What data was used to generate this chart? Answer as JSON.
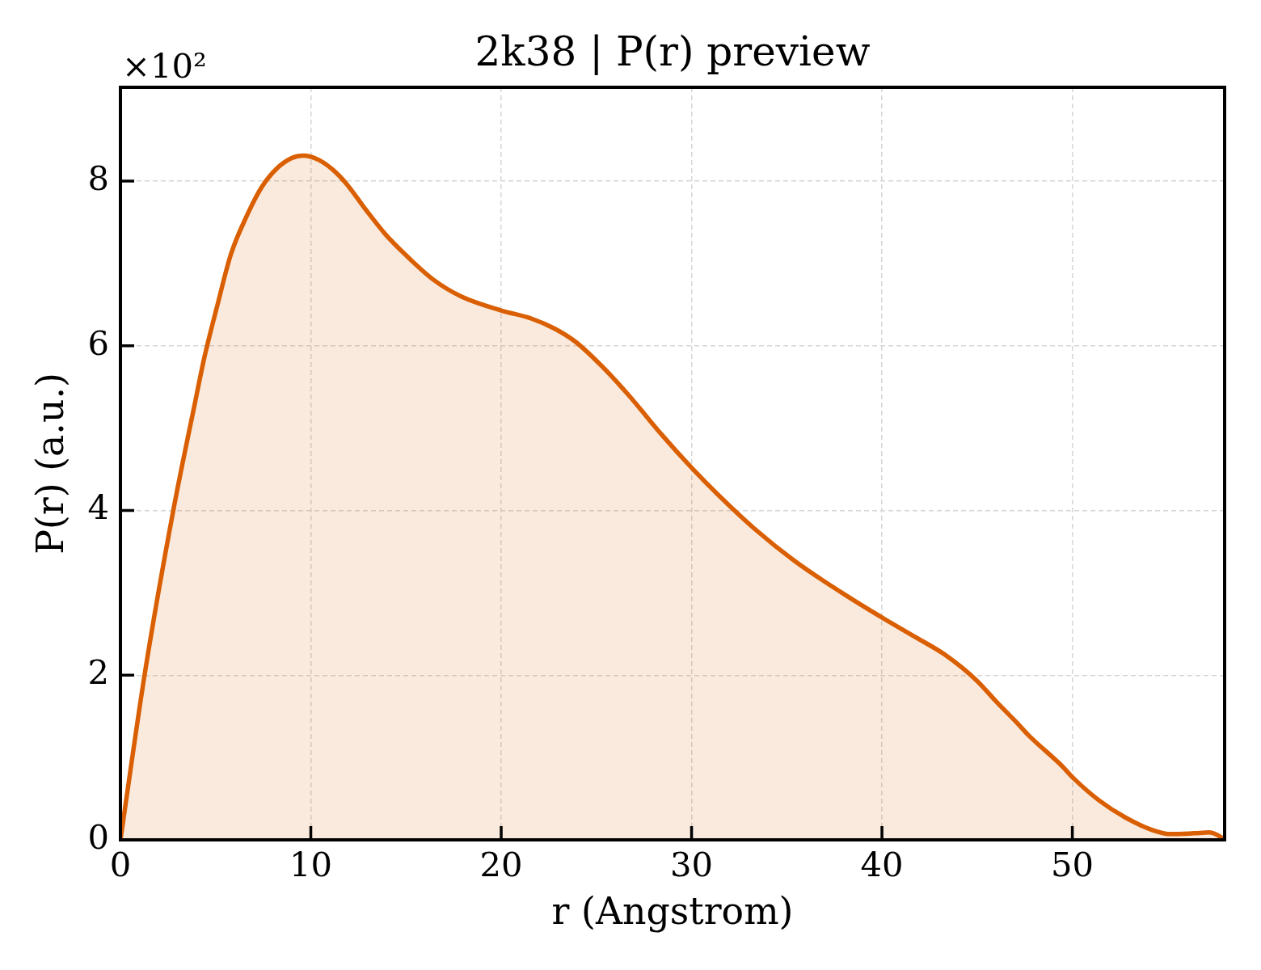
{
  "chart_data": {
    "type": "area",
    "title": "2k38 | P(r) preview",
    "xlabel": "r (Angstrom)",
    "ylabel": "P(r) (a.u.)",
    "annotations": [
      "×10²"
    ],
    "x": [
      0,
      1.3,
      2.8,
      3.9,
      4.4,
      5.1,
      5.8,
      6.6,
      7.4,
      8.2,
      9.0,
      9.6,
      10.4,
      11.2,
      11.9,
      12.9,
      13.9,
      15.0,
      16.4,
      17.9,
      20.0,
      21.6,
      22.8,
      23.9,
      25.3,
      26.7,
      28.4,
      30.0,
      31.4,
      33.3,
      35.4,
      37.9,
      40.0,
      41.7,
      43.3,
      45.0,
      46.0,
      47.1,
      47.7,
      49.4,
      50.1,
      51.4,
      52.8,
      54.2,
      55.2,
      56.4,
      57.2,
      57.9,
      58
    ],
    "values": [
      0,
      2.05,
      4.03,
      5.29,
      5.85,
      6.5,
      7.11,
      7.56,
      7.92,
      8.15,
      8.28,
      8.31,
      8.26,
      8.13,
      7.96,
      7.65,
      7.36,
      7.1,
      6.81,
      6.6,
      6.43,
      6.33,
      6.21,
      6.05,
      5.75,
      5.4,
      4.93,
      4.52,
      4.19,
      3.78,
      3.39,
      3.0,
      2.7,
      2.47,
      2.25,
      1.93,
      1.68,
      1.42,
      1.27,
      0.91,
      0.74,
      0.48,
      0.27,
      0.12,
      0.07,
      0.08,
      0.09,
      0.02,
      0
    ],
    "color": "#d95f02",
    "xlim": [
      0,
      58
    ],
    "xticks": [
      0,
      10,
      20,
      30,
      40,
      50
    ],
    "ylim": [
      0,
      9.14
    ],
    "yticks": [
      0,
      2,
      4,
      6,
      8
    ],
    "grid": true,
    "legend": false,
    "marker": "none"
  }
}
